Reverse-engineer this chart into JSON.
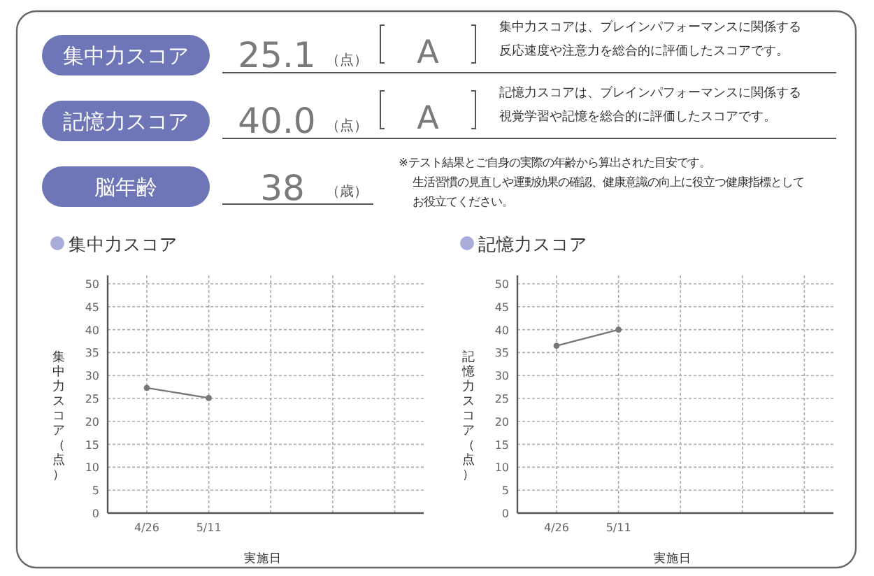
{
  "chart_data": [
    {
      "type": "other",
      "annotations": [
        "集中力スコア",
        "25.1",
        "（点）",
        "A",
        "集中力スコアは、ブレインパフォーマンスに関係する",
        "反応速度や注意力を総合的に評価したスコアです。",
        "記憶力スコア",
        "40.0",
        "（点）",
        "A",
        "記憶力スコアは、ブレインパフォーマンスに関係する",
        "視覚学習や記憶を総合的に評価したスコアです。",
        "脳年齢",
        "38",
        "（歳）",
        "※テスト結果とご自身の実際の年齢から算出された目安です。",
        "生活習慣の見直しや運動効果の確認、健康意識の向上に役立つ健康指標として",
        "お役立てください。"
      ]
    },
    {
      "type": "line",
      "title": "集中力スコア",
      "xlabel": "実施日",
      "ylabel": "集中力スコア（点）",
      "categories": [
        "4/26",
        "5/11",
        null,
        null,
        null
      ],
      "series": [
        {
          "color": "#777777",
          "values": [
            27.3,
            25.1,
            null,
            null,
            null
          ]
        }
      ],
      "ylim": [
        0,
        50
      ],
      "yticks": [
        0,
        5,
        10,
        15,
        20,
        25,
        30,
        35,
        40,
        45,
        50
      ],
      "grid": true,
      "marker": "circle",
      "line_style": "solid"
    },
    {
      "type": "line",
      "title": "記憶力スコア",
      "xlabel": "実施日",
      "ylabel": "記憶力スコア（点）",
      "categories": [
        "4/26",
        "5/11",
        null,
        null,
        null
      ],
      "series": [
        {
          "color": "#777777",
          "values": [
            36.5,
            40.0,
            null,
            null,
            null
          ]
        }
      ],
      "ylim": [
        0,
        50
      ],
      "yticks": [
        0,
        5,
        10,
        15,
        20,
        25,
        30,
        35,
        40,
        45,
        50
      ],
      "grid": true,
      "marker": "circle",
      "line_style": "solid"
    }
  ]
}
